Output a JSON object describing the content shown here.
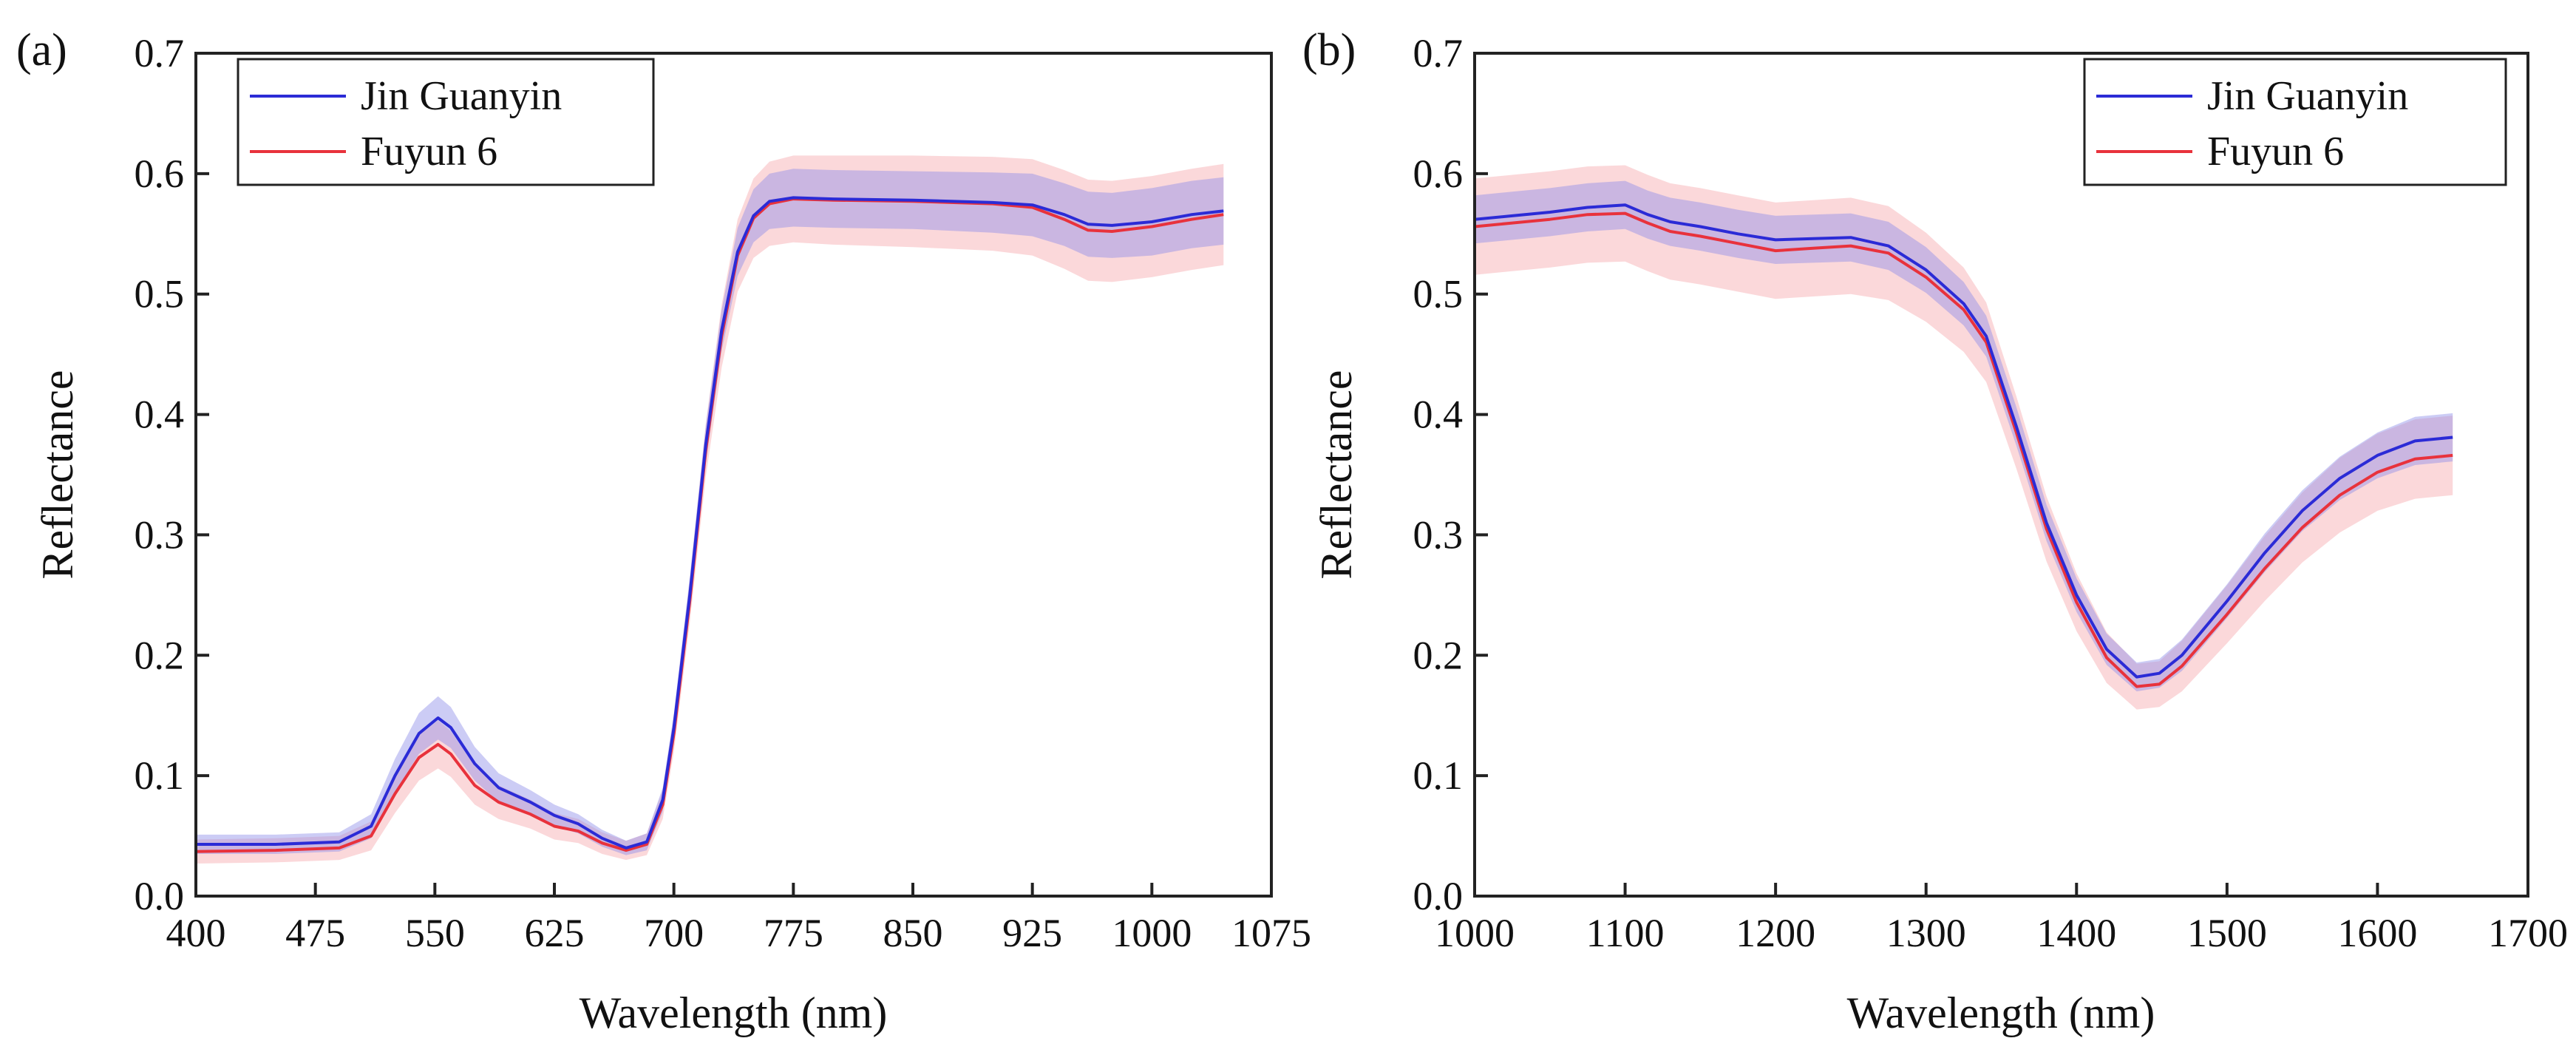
{
  "chart_data": [
    {
      "panel_label": "(a)",
      "type": "line",
      "xlabel": "Wavelength (nm)",
      "ylabel": "Reflectance",
      "xlim": [
        400,
        1075
      ],
      "ylim": [
        0.0,
        0.7
      ],
      "xticks": [
        "400",
        "475",
        "550",
        "625",
        "700",
        "775",
        "850",
        "925",
        "1000",
        "1075"
      ],
      "yticks": [
        "0.0",
        "0.1",
        "0.2",
        "0.3",
        "0.4",
        "0.5",
        "0.6",
        "0.7"
      ],
      "legend": {
        "position": "top-left",
        "entries": [
          "Jin Guanyin",
          "Fuyun 6"
        ]
      },
      "series": [
        {
          "name": "Jin Guanyin",
          "color": "#2b2bd6",
          "band_color": "#8f8fe8",
          "x": [
            400,
            450,
            490,
            510,
            525,
            540,
            552,
            560,
            575,
            590,
            610,
            625,
            640,
            655,
            670,
            683,
            693,
            700,
            710,
            720,
            730,
            740,
            750,
            760,
            775,
            800,
            850,
            900,
            925,
            945,
            960,
            975,
            1000,
            1025,
            1045
          ],
          "values": [
            0.043,
            0.043,
            0.045,
            0.058,
            0.1,
            0.135,
            0.148,
            0.14,
            0.11,
            0.09,
            0.078,
            0.067,
            0.06,
            0.048,
            0.04,
            0.045,
            0.08,
            0.14,
            0.25,
            0.375,
            0.47,
            0.535,
            0.565,
            0.577,
            0.58,
            0.579,
            0.578,
            0.576,
            0.574,
            0.566,
            0.558,
            0.557,
            0.56,
            0.566,
            0.569
          ],
          "band": [
            0.008,
            0.008,
            0.008,
            0.01,
            0.014,
            0.017,
            0.018,
            0.017,
            0.014,
            0.012,
            0.01,
            0.009,
            0.008,
            0.007,
            0.006,
            0.007,
            0.01,
            0.012,
            0.015,
            0.016,
            0.017,
            0.02,
            0.022,
            0.023,
            0.024,
            0.024,
            0.024,
            0.025,
            0.026,
            0.026,
            0.027,
            0.027,
            0.028,
            0.028,
            0.028
          ]
        },
        {
          "name": "Fuyun 6",
          "color": "#e8323c",
          "band_color": "#f6a9ae",
          "x": [
            400,
            450,
            490,
            510,
            525,
            540,
            552,
            560,
            575,
            590,
            610,
            625,
            640,
            655,
            670,
            683,
            693,
            700,
            710,
            720,
            730,
            740,
            750,
            760,
            775,
            800,
            850,
            900,
            925,
            945,
            960,
            975,
            1000,
            1025,
            1045
          ],
          "values": [
            0.037,
            0.038,
            0.04,
            0.05,
            0.085,
            0.115,
            0.126,
            0.118,
            0.092,
            0.078,
            0.068,
            0.058,
            0.054,
            0.044,
            0.038,
            0.043,
            0.076,
            0.135,
            0.245,
            0.37,
            0.465,
            0.532,
            0.563,
            0.575,
            0.579,
            0.578,
            0.577,
            0.575,
            0.572,
            0.562,
            0.553,
            0.552,
            0.556,
            0.562,
            0.566
          ],
          "band": [
            0.01,
            0.01,
            0.01,
            0.012,
            0.016,
            0.019,
            0.02,
            0.019,
            0.016,
            0.014,
            0.012,
            0.011,
            0.01,
            0.009,
            0.008,
            0.009,
            0.012,
            0.015,
            0.018,
            0.022,
            0.026,
            0.03,
            0.033,
            0.035,
            0.036,
            0.037,
            0.038,
            0.039,
            0.04,
            0.041,
            0.042,
            0.042,
            0.042,
            0.042,
            0.042
          ]
        }
      ]
    },
    {
      "panel_label": "(b)",
      "type": "line",
      "xlabel": "Wavelength (nm)",
      "ylabel": "Reflectance",
      "xlim": [
        1000,
        1700
      ],
      "ylim": [
        0.0,
        0.7
      ],
      "xticks": [
        "1000",
        "1100",
        "1200",
        "1300",
        "1400",
        "1500",
        "1600",
        "1700"
      ],
      "yticks": [
        "0.0",
        "0.1",
        "0.2",
        "0.3",
        "0.4",
        "0.5",
        "0.6",
        "0.7"
      ],
      "legend": {
        "position": "top-right",
        "entries": [
          "Jin Guanyin",
          "Fuyun 6"
        ]
      },
      "series": [
        {
          "name": "Jin Guanyin",
          "color": "#2b2bd6",
          "band_color": "#8f8fe8",
          "x": [
            1000,
            1025,
            1050,
            1075,
            1100,
            1115,
            1130,
            1150,
            1175,
            1200,
            1225,
            1250,
            1275,
            1300,
            1325,
            1340,
            1360,
            1380,
            1400,
            1420,
            1440,
            1455,
            1470,
            1500,
            1525,
            1550,
            1575,
            1600,
            1625,
            1650
          ],
          "values": [
            0.562,
            0.565,
            0.568,
            0.572,
            0.574,
            0.566,
            0.56,
            0.556,
            0.55,
            0.545,
            0.546,
            0.547,
            0.54,
            0.52,
            0.492,
            0.465,
            0.39,
            0.31,
            0.25,
            0.205,
            0.182,
            0.185,
            0.2,
            0.245,
            0.285,
            0.32,
            0.347,
            0.366,
            0.378,
            0.381
          ],
          "band": [
            0.02,
            0.02,
            0.02,
            0.02,
            0.02,
            0.02,
            0.02,
            0.02,
            0.02,
            0.02,
            0.02,
            0.02,
            0.02,
            0.019,
            0.018,
            0.017,
            0.016,
            0.015,
            0.014,
            0.013,
            0.012,
            0.012,
            0.013,
            0.014,
            0.016,
            0.017,
            0.018,
            0.019,
            0.02,
            0.02
          ]
        },
        {
          "name": "Fuyun 6",
          "color": "#e8323c",
          "band_color": "#f6a9ae",
          "x": [
            1000,
            1025,
            1050,
            1075,
            1100,
            1115,
            1130,
            1150,
            1175,
            1200,
            1225,
            1250,
            1275,
            1300,
            1325,
            1340,
            1360,
            1380,
            1400,
            1420,
            1440,
            1455,
            1470,
            1500,
            1525,
            1550,
            1575,
            1600,
            1625,
            1650
          ],
          "values": [
            0.556,
            0.559,
            0.562,
            0.566,
            0.567,
            0.559,
            0.552,
            0.548,
            0.542,
            0.536,
            0.538,
            0.54,
            0.534,
            0.514,
            0.487,
            0.46,
            0.385,
            0.305,
            0.244,
            0.198,
            0.174,
            0.176,
            0.191,
            0.234,
            0.272,
            0.306,
            0.333,
            0.352,
            0.363,
            0.366
          ],
          "band": [
            0.04,
            0.04,
            0.04,
            0.04,
            0.04,
            0.04,
            0.04,
            0.04,
            0.04,
            0.04,
            0.04,
            0.04,
            0.039,
            0.037,
            0.035,
            0.033,
            0.03,
            0.027,
            0.024,
            0.021,
            0.019,
            0.019,
            0.021,
            0.024,
            0.027,
            0.029,
            0.031,
            0.032,
            0.033,
            0.033
          ]
        }
      ]
    }
  ]
}
